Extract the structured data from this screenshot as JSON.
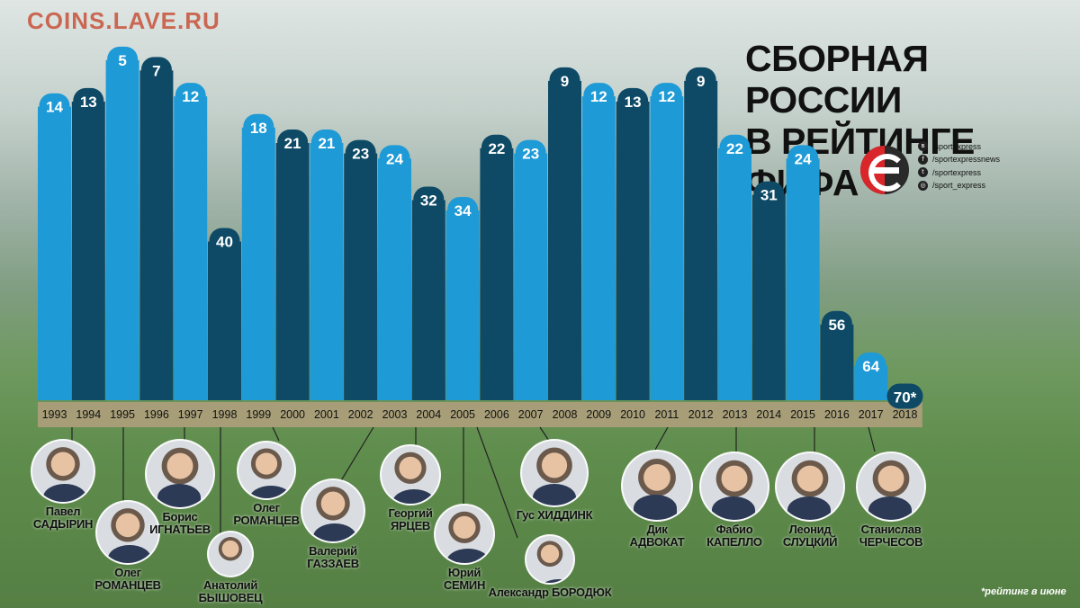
{
  "watermark": "COINS.LAVE.RU",
  "title_line1": "СБОРНАЯ РОССИИ",
  "title_line2": "В РЕЙТИНГЕ ФИФА",
  "social": {
    "items": [
      {
        "icon": "vk-icon",
        "glyph": "в",
        "text": "/sportexpress"
      },
      {
        "icon": "facebook-icon",
        "glyph": "f",
        "text": "/sportexpressnews"
      },
      {
        "icon": "twitter-icon",
        "glyph": "t",
        "text": "/sportexpress"
      },
      {
        "icon": "instagram-icon",
        "glyph": "◎",
        "text": "/sport_express"
      }
    ]
  },
  "footnote": "*рейтинг в июне",
  "colors": {
    "light_bar": "#1e9ad6",
    "dark_bar": "#0e4a66",
    "label_strip": "#b3a07f",
    "badge_text": "#ffffff"
  },
  "chart_data": {
    "type": "bar",
    "title": "СБОРНАЯ РОССИИ В РЕЙТИНГЕ ФИФА",
    "categories": [
      "1993",
      "1994",
      "1995",
      "1996",
      "1997",
      "1998",
      "1999",
      "2000",
      "2001",
      "2002",
      "2003",
      "2004",
      "2005",
      "2006",
      "2007",
      "2008",
      "2009",
      "2010",
      "2011",
      "2012",
      "2013",
      "2014",
      "2015",
      "2016",
      "2017",
      "2018"
    ],
    "values": [
      14,
      13,
      5,
      7,
      12,
      40,
      18,
      21,
      21,
      23,
      24,
      32,
      34,
      22,
      23,
      9,
      12,
      13,
      12,
      9,
      22,
      31,
      24,
      56,
      64,
      70
    ],
    "value_labels": [
      "14",
      "13",
      "5",
      "7",
      "12",
      "40",
      "18",
      "21",
      "21",
      "23",
      "24",
      "32",
      "34",
      "22",
      "23",
      "9",
      "12",
      "13",
      "12",
      "9",
      "22",
      "31",
      "24",
      "56",
      "64",
      "70*"
    ],
    "shades": [
      "light",
      "dark",
      "light",
      "dark",
      "light",
      "dark",
      "light",
      "dark",
      "light",
      "dark",
      "light",
      "dark",
      "light",
      "dark",
      "light",
      "dark",
      "light",
      "dark",
      "light",
      "dark",
      "light",
      "dark",
      "light",
      "dark",
      "light",
      "dark"
    ],
    "y_axis": "FIFA rank (inverted, lower is better)",
    "grid": false,
    "legend": "none"
  },
  "coaches": [
    {
      "name": "Павел\nСАДЫРИН"
    },
    {
      "name": "Олег\nРОМАНЦЕВ"
    },
    {
      "name": "Борис\nИГНАТЬЕВ"
    },
    {
      "name": "Анатолий\nБЫШОВЕЦ"
    },
    {
      "name": "Олег\nРОМАНЦЕВ"
    },
    {
      "name": "Валерий\nГАЗЗАЕВ"
    },
    {
      "name": "Георгий\nЯРЦЕВ"
    },
    {
      "name": "Юрий\nСЕМИН"
    },
    {
      "name": "Александр БОРОДЮК"
    },
    {
      "name": "Гус ХИДДИНК"
    },
    {
      "name": "Дик\nАДВОКАТ"
    },
    {
      "name": "Фабио\nКАПЕЛЛО"
    },
    {
      "name": "Леонид\nСЛУЦКИЙ"
    },
    {
      "name": "Станислав\nЧЕРЧЕСОВ"
    }
  ]
}
